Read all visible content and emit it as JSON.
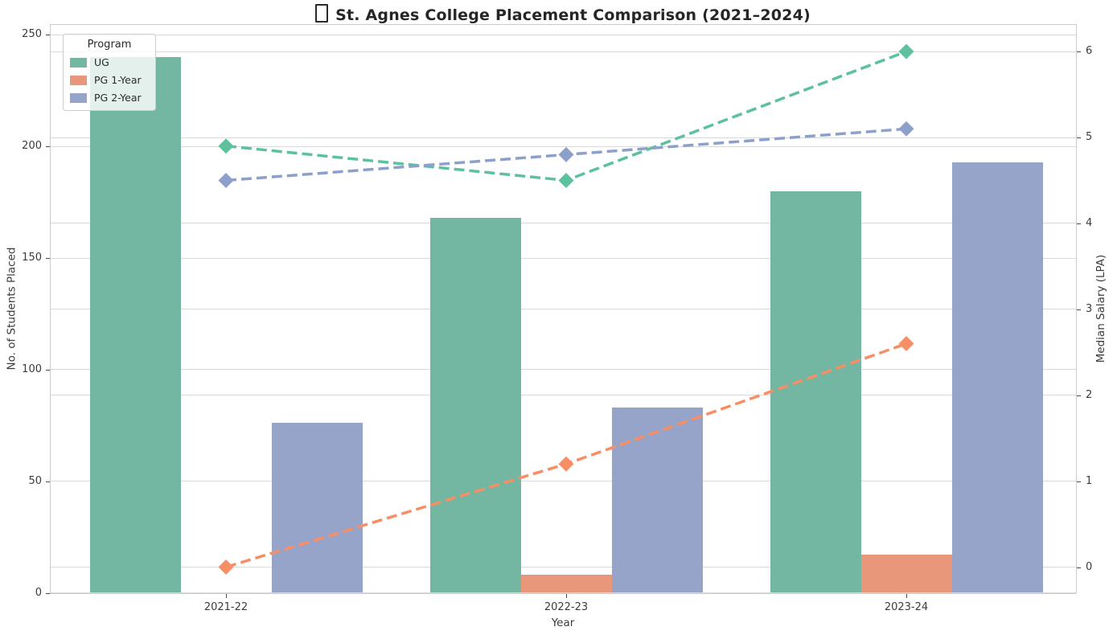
{
  "chart_data": {
    "type": "bar",
    "title": "St. Agnes College Placement Comparison (2021–2024)",
    "title_prefix_icon": "missing-glyph-tofu",
    "categories": [
      "2021-22",
      "2022-23",
      "2023-24"
    ],
    "xlabel": "Year",
    "ylabel_left": "No. of Students Placed",
    "ylabel_right": "Median Salary (LPA)",
    "yticks_left": [
      0,
      50,
      100,
      150,
      200,
      250
    ],
    "yticks_right": [
      0,
      1,
      2,
      3,
      4,
      5,
      6
    ],
    "ylim_left": [
      0,
      255
    ],
    "ylim_right": [
      0,
      6.3
    ],
    "grid": true,
    "legend": {
      "title": "Program",
      "position": "upper-left"
    },
    "bar_series": [
      {
        "name": "UG",
        "values": [
          240,
          168,
          180
        ],
        "color": "#73b6a2"
      },
      {
        "name": "PG 1-Year",
        "values": [
          0,
          8,
          17
        ],
        "color": "#e9977a"
      },
      {
        "name": "PG 2-Year",
        "values": [
          76,
          83,
          193
        ],
        "color": "#95a4c8"
      }
    ],
    "line_series": [
      {
        "name": "UG",
        "values": [
          4.9,
          4.5,
          6.0
        ],
        "color": "#5dc19e",
        "style": "dashed",
        "marker": "diamond"
      },
      {
        "name": "PG 1-Year",
        "values": [
          0.0,
          1.2,
          2.6
        ],
        "color": "#f78e65",
        "style": "dashed",
        "marker": "diamond"
      },
      {
        "name": "PG 2-Year",
        "values": [
          4.5,
          4.8,
          5.1
        ],
        "color": "#8da0cb",
        "style": "dashed",
        "marker": "diamond"
      }
    ],
    "colors": {
      "grid": "#d9d9d9",
      "spine": "#cccccc",
      "text": "#3b3b3b",
      "title": "#262626"
    }
  }
}
